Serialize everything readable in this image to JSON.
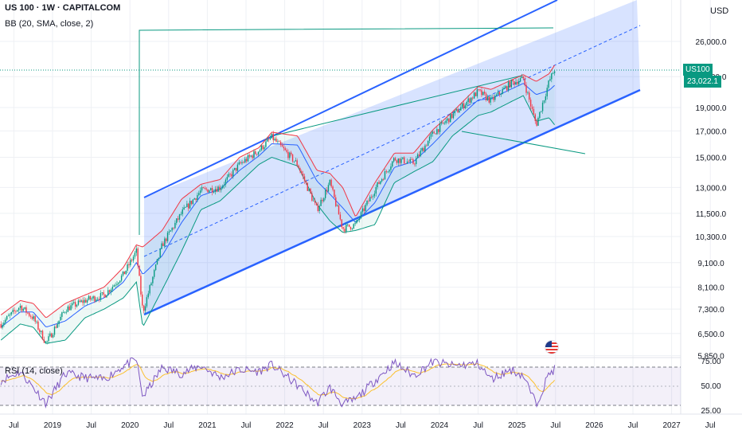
{
  "header": {
    "title": "US 100 · 1W · CAPITALCOM",
    "indicator": "BB (20, SMA, close, 2)"
  },
  "price_axis": {
    "currency": "USD",
    "ticks": [
      "26,000.0",
      "22,000.0",
      "19,000.0",
      "17,000.0",
      "15,000.0",
      "13,000.0",
      "11,500.0",
      "10,300.0",
      "9,100.0",
      "8,100.0",
      "7,300.0",
      "6,500.0",
      "5,850.0"
    ],
    "last_symbol": "US100",
    "last_price": "23,022.1"
  },
  "rsi_panel": {
    "label": "RSI (14, close)",
    "ticks": [
      "75.00",
      "50.00",
      "25.00"
    ]
  },
  "time_axis": {
    "labels": [
      "Jul",
      "2019",
      "Jul",
      "2020",
      "Jul",
      "2021",
      "Jul",
      "2022",
      "Jul",
      "2023",
      "Jul",
      "2024",
      "Jul",
      "2025",
      "Jul",
      "2026",
      "Jul",
      "2027",
      "Jul"
    ]
  },
  "colors": {
    "up": "#089981",
    "down": "#f23645",
    "bb_upper": "#f23645",
    "bb_basis": "#2962ff",
    "bb_lower": "#089981",
    "channel": "#2962ff",
    "channel_fill": "rgba(41,98,255,0.18)",
    "trendline": "#089981",
    "rsi_line": "#7e57c2",
    "rsi_ma": "#fbc02d"
  },
  "chart_data": [
    {
      "type": "line",
      "title": "US 100 · 1W · CAPITALCOM",
      "scale": "log",
      "ylim": [
        5850,
        30000
      ],
      "x_range": [
        "2018-05",
        "2027-10"
      ],
      "series": [
        {
          "name": "",
          "x": [
            "2018-05",
            "2018-08",
            "2018-10",
            "2018-12",
            "2019-03",
            "2019-06",
            "2019-09",
            "2019-12",
            "2020-02",
            "2020-03",
            "2020-06",
            "2020-09",
            "2020-12",
            "2021-03",
            "2021-06",
            "2021-09",
            "2021-11",
            "2022-03",
            "2022-06",
            "2022-08",
            "2022-10",
            "2022-12",
            "2023-03",
            "2023-06",
            "2023-09",
            "2023-12",
            "2024-03",
            "2024-07",
            "2024-09",
            "2024-12",
            "2025-02",
            "2025-04",
            "2025-06",
            "2025-07"
          ],
          "values": [
            6800,
            7400,
            7000,
            6200,
            7300,
            7600,
            7800,
            8600,
            9600,
            7200,
            9900,
            11500,
            12800,
            13000,
            14500,
            15500,
            16500,
            14500,
            11700,
            13300,
            10700,
            10900,
            12900,
            14900,
            14600,
            16800,
            18300,
            20500,
            19600,
            21300,
            21800,
            17500,
            21500,
            23022
          ]
        }
      ],
      "bollinger": {
        "params": "BB (20, SMA, close, 2)",
        "upper": [
          7100,
          7600,
          7500,
          7000,
          7500,
          7800,
          8100,
          8900,
          9900,
          9800,
          10600,
          12300,
          13200,
          13500,
          15000,
          15700,
          16900,
          16600,
          14100,
          13900,
          13000,
          11300,
          13300,
          15300,
          15300,
          17100,
          18600,
          21000,
          20700,
          21600,
          22200,
          21500,
          22300,
          23400
        ],
        "basis": [
          6700,
          7200,
          7200,
          6700,
          6900,
          7400,
          7700,
          8300,
          9100,
          8600,
          9400,
          11000,
          12500,
          12900,
          14100,
          15100,
          16000,
          15900,
          13400,
          12600,
          11800,
          11000,
          12100,
          14300,
          14700,
          16000,
          17600,
          19700,
          19800,
          20700,
          21300,
          20200,
          20600,
          21200
        ],
        "lower": [
          6300,
          6800,
          6700,
          6200,
          6300,
          7000,
          7300,
          7700,
          8300,
          6700,
          8000,
          9600,
          11700,
          12200,
          13300,
          14500,
          15000,
          14400,
          12000,
          11100,
          10500,
          10600,
          10900,
          13300,
          14000,
          14700,
          16600,
          18300,
          18600,
          19500,
          20100,
          17800,
          18100,
          17400
        ]
      },
      "channel": {
        "upper": [
          {
            "date": "2020-06",
            "price": 12800
          },
          {
            "date": "2025-08",
            "price": 30000
          }
        ],
        "lower": [
          {
            "date": "2020-06",
            "price": 6900
          },
          {
            "date": "2026-04",
            "price": 20200
          }
        ]
      },
      "trendlines": [
        {
          "from": {
            "date": "2020-02",
            "price": 9800
          },
          "to": {
            "date": "2020-02",
            "price": 27800
          }
        },
        {
          "from": {
            "date": "2020-02",
            "price": 27800
          },
          "to": {
            "date": "2025-08",
            "price": 27800
          }
        },
        {
          "from": {
            "date": "2021-11",
            "price": 16800
          },
          "to": {
            "date": "2025-03",
            "price": 21600
          }
        },
        {
          "from": {
            "date": "2024-07",
            "price": 16900
          },
          "to": {
            "date": "2026-01",
            "price": 15200
          }
        }
      ]
    },
    {
      "type": "line",
      "title": "RSI (14, close)",
      "ylim": [
        20,
        80
      ],
      "series": [
        {
          "name": "",
          "x": [
            "2018-05",
            "2018-08",
            "2018-10",
            "2018-12",
            "2019-03",
            "2019-06",
            "2019-09",
            "2019-12",
            "2020-02",
            "2020-03",
            "2020-06",
            "2020-09",
            "2020-12",
            "2021-03",
            "2021-06",
            "2021-09",
            "2021-11",
            "2022-03",
            "2022-06",
            "2022-08",
            "2022-10",
            "2022-12",
            "2023-03",
            "2023-06",
            "2023-09",
            "2023-12",
            "2024-03",
            "2024-07",
            "2024-09",
            "2024-12",
            "2025-02",
            "2025-04",
            "2025-06",
            "2025-07"
          ],
          "values": [
            55,
            64,
            48,
            32,
            62,
            58,
            56,
            70,
            76,
            38,
            68,
            62,
            70,
            58,
            66,
            64,
            71,
            50,
            32,
            48,
            31,
            36,
            55,
            73,
            60,
            74,
            70,
            72,
            56,
            66,
            60,
            31,
            62,
            67
          ]
        }
      ],
      "reference_lines": [
        70,
        50,
        30
      ]
    }
  ]
}
